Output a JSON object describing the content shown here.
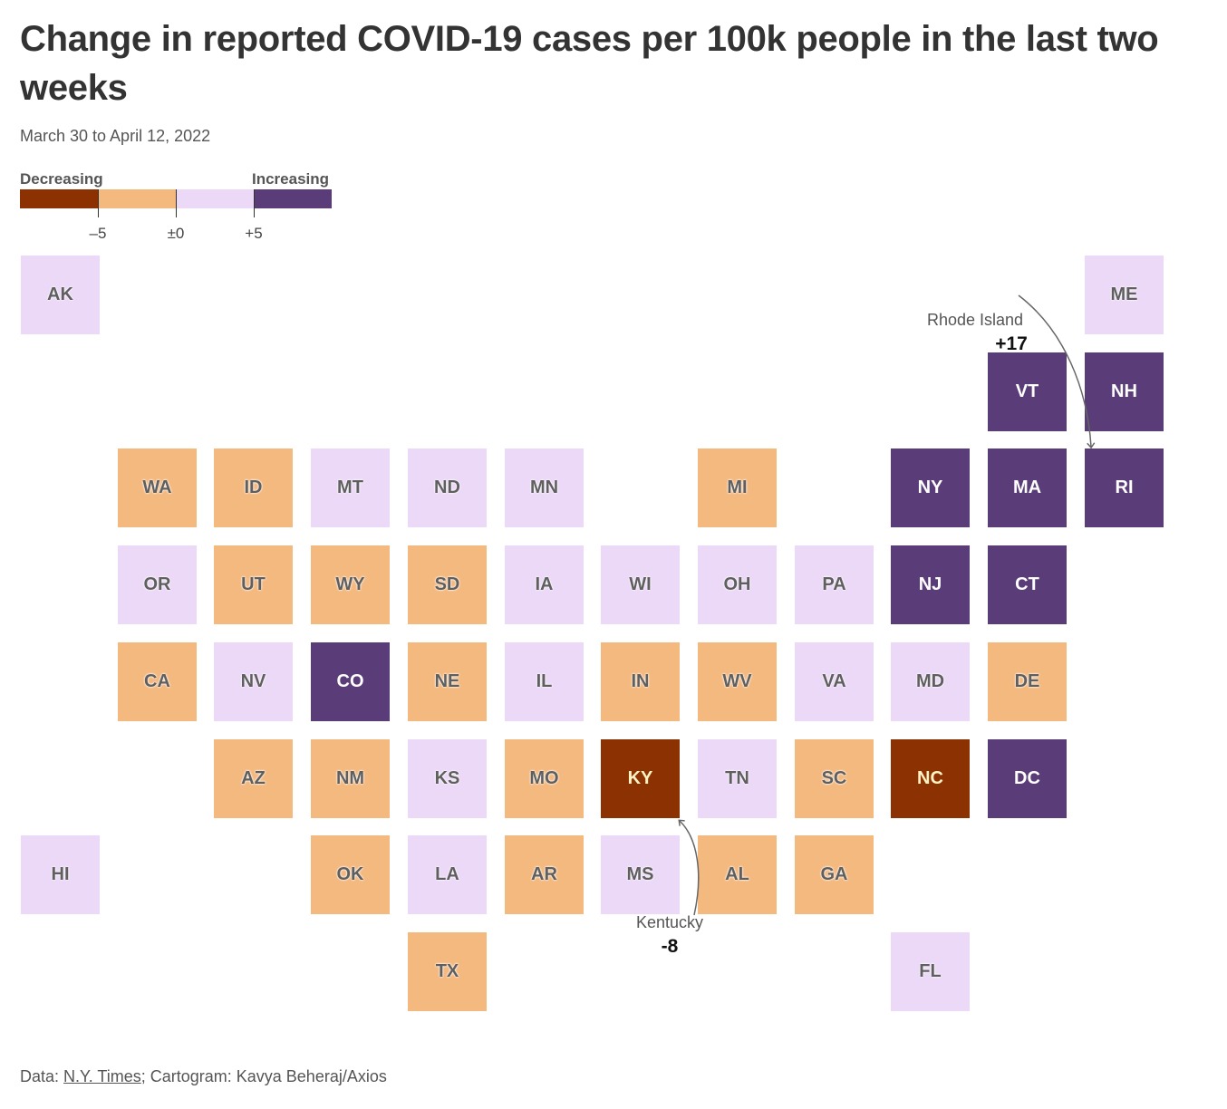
{
  "title": "Change in reported COVID-19 cases per 100k people in the last two weeks",
  "subtitle": "March 30 to April 12, 2022",
  "legend": {
    "low_label": "Decreasing",
    "high_label": "Increasing",
    "ticks": [
      "–5",
      "±0",
      "+5"
    ],
    "colors": {
      "strong_decrease": "#8b3102",
      "decrease": "#f4b97f",
      "increase": "#ecd8f7",
      "strong_increase": "#5a3c78"
    }
  },
  "states": [
    {
      "abbr": "AK",
      "bin": "increase",
      "row": 0,
      "col": 0
    },
    {
      "abbr": "ME",
      "bin": "increase",
      "row": 0,
      "col": 11
    },
    {
      "abbr": "VT",
      "bin": "strong_increase",
      "row": 1,
      "col": 10
    },
    {
      "abbr": "NH",
      "bin": "strong_increase",
      "row": 1,
      "col": 11
    },
    {
      "abbr": "WA",
      "bin": "decrease",
      "row": 2,
      "col": 1
    },
    {
      "abbr": "ID",
      "bin": "decrease",
      "row": 2,
      "col": 2
    },
    {
      "abbr": "MT",
      "bin": "increase",
      "row": 2,
      "col": 3
    },
    {
      "abbr": "ND",
      "bin": "increase",
      "row": 2,
      "col": 4
    },
    {
      "abbr": "MN",
      "bin": "increase",
      "row": 2,
      "col": 5
    },
    {
      "abbr": "MI",
      "bin": "decrease",
      "row": 2,
      "col": 7
    },
    {
      "abbr": "NY",
      "bin": "strong_increase",
      "row": 2,
      "col": 9
    },
    {
      "abbr": "MA",
      "bin": "strong_increase",
      "row": 2,
      "col": 10
    },
    {
      "abbr": "RI",
      "bin": "strong_increase",
      "row": 2,
      "col": 11
    },
    {
      "abbr": "OR",
      "bin": "increase",
      "row": 3,
      "col": 1
    },
    {
      "abbr": "UT",
      "bin": "decrease",
      "row": 3,
      "col": 2
    },
    {
      "abbr": "WY",
      "bin": "decrease",
      "row": 3,
      "col": 3
    },
    {
      "abbr": "SD",
      "bin": "decrease",
      "row": 3,
      "col": 4
    },
    {
      "abbr": "IA",
      "bin": "increase",
      "row": 3,
      "col": 5
    },
    {
      "abbr": "WI",
      "bin": "increase",
      "row": 3,
      "col": 6
    },
    {
      "abbr": "OH",
      "bin": "increase",
      "row": 3,
      "col": 7
    },
    {
      "abbr": "PA",
      "bin": "increase",
      "row": 3,
      "col": 8
    },
    {
      "abbr": "NJ",
      "bin": "strong_increase",
      "row": 3,
      "col": 9
    },
    {
      "abbr": "CT",
      "bin": "strong_increase",
      "row": 3,
      "col": 10
    },
    {
      "abbr": "CA",
      "bin": "decrease",
      "row": 4,
      "col": 1
    },
    {
      "abbr": "NV",
      "bin": "increase",
      "row": 4,
      "col": 2
    },
    {
      "abbr": "CO",
      "bin": "strong_increase",
      "row": 4,
      "col": 3
    },
    {
      "abbr": "NE",
      "bin": "decrease",
      "row": 4,
      "col": 4
    },
    {
      "abbr": "IL",
      "bin": "increase",
      "row": 4,
      "col": 5
    },
    {
      "abbr": "IN",
      "bin": "decrease",
      "row": 4,
      "col": 6
    },
    {
      "abbr": "WV",
      "bin": "decrease",
      "row": 4,
      "col": 7
    },
    {
      "abbr": "VA",
      "bin": "increase",
      "row": 4,
      "col": 8
    },
    {
      "abbr": "MD",
      "bin": "increase",
      "row": 4,
      "col": 9
    },
    {
      "abbr": "DE",
      "bin": "decrease",
      "row": 4,
      "col": 10
    },
    {
      "abbr": "AZ",
      "bin": "decrease",
      "row": 5,
      "col": 2
    },
    {
      "abbr": "NM",
      "bin": "decrease",
      "row": 5,
      "col": 3
    },
    {
      "abbr": "KS",
      "bin": "increase",
      "row": 5,
      "col": 4
    },
    {
      "abbr": "MO",
      "bin": "decrease",
      "row": 5,
      "col": 5
    },
    {
      "abbr": "KY",
      "bin": "strong_decrease",
      "row": 5,
      "col": 6
    },
    {
      "abbr": "TN",
      "bin": "increase",
      "row": 5,
      "col": 7
    },
    {
      "abbr": "SC",
      "bin": "decrease",
      "row": 5,
      "col": 8
    },
    {
      "abbr": "NC",
      "bin": "strong_decrease",
      "row": 5,
      "col": 9
    },
    {
      "abbr": "DC",
      "bin": "strong_increase",
      "row": 5,
      "col": 10
    },
    {
      "abbr": "HI",
      "bin": "increase",
      "row": 6,
      "col": 0
    },
    {
      "abbr": "OK",
      "bin": "decrease",
      "row": 6,
      "col": 3
    },
    {
      "abbr": "LA",
      "bin": "increase",
      "row": 6,
      "col": 4
    },
    {
      "abbr": "AR",
      "bin": "decrease",
      "row": 6,
      "col": 5
    },
    {
      "abbr": "MS",
      "bin": "increase",
      "row": 6,
      "col": 6
    },
    {
      "abbr": "AL",
      "bin": "decrease",
      "row": 6,
      "col": 7
    },
    {
      "abbr": "GA",
      "bin": "decrease",
      "row": 6,
      "col": 8
    },
    {
      "abbr": "TX",
      "bin": "decrease",
      "row": 7,
      "col": 4
    },
    {
      "abbr": "FL",
      "bin": "increase",
      "row": 7,
      "col": 9
    }
  ],
  "annotations": {
    "rhode_island": {
      "label": "Rhode Island",
      "value": "+17"
    },
    "kentucky": {
      "label": "Kentucky",
      "value": "-8"
    }
  },
  "footer": {
    "prefix": "Data: ",
    "source_link": "N.Y. Times",
    "suffix": "; Cartogram: Kavya Beheraj/Axios"
  }
}
